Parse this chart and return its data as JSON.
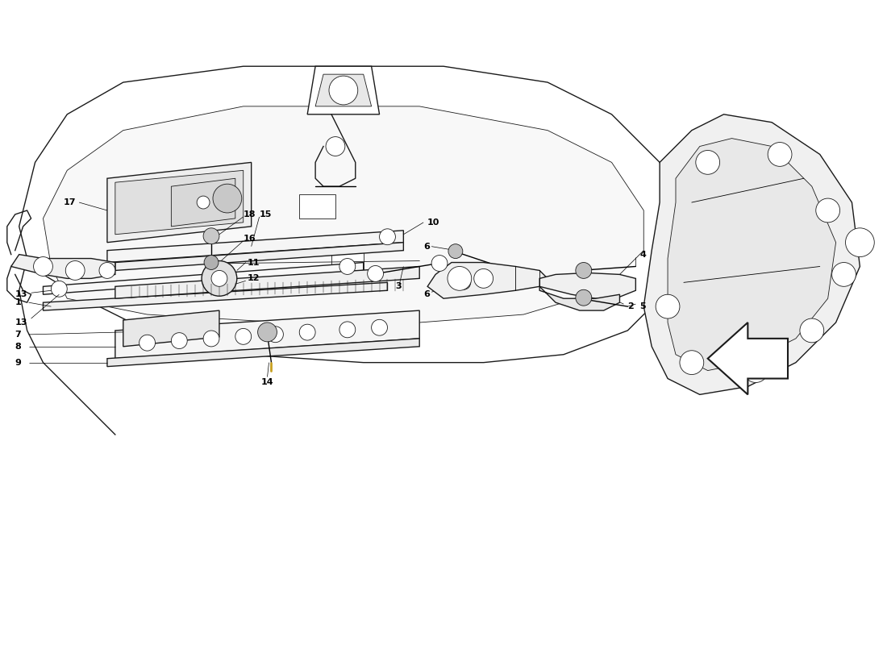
{
  "bg_color": "#ffffff",
  "line_color": "#1a1a1a",
  "watermark_color1": "#c8b84a",
  "watermark_color2": "#c8b84a",
  "figsize": [
    11.0,
    8.0
  ],
  "dpi": 100,
  "xlim": [
    0,
    110
  ],
  "ylim": [
    0,
    80
  ]
}
